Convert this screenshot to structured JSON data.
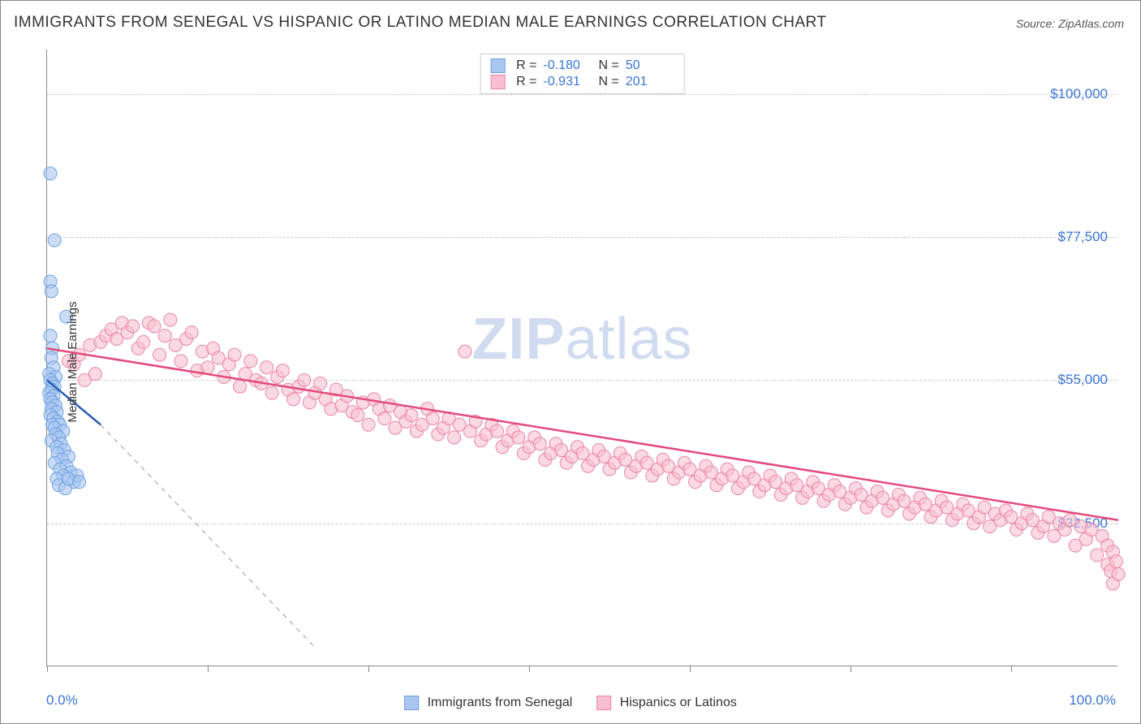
{
  "title": "IMMIGRANTS FROM SENEGAL VS HISPANIC OR LATINO MEDIAN MALE EARNINGS CORRELATION CHART",
  "source": "Source: ZipAtlas.com",
  "ylabel": "Median Male Earnings",
  "watermark_zip": "ZIP",
  "watermark_atlas": "atlas",
  "chart": {
    "type": "scatter",
    "xlim": [
      0,
      100
    ],
    "ylim": [
      10000,
      107000
    ],
    "yticks": [
      {
        "v": 32500,
        "label": "$32,500"
      },
      {
        "v": 55000,
        "label": "$55,000"
      },
      {
        "v": 77500,
        "label": "$77,500"
      },
      {
        "v": 100000,
        "label": "$100,000"
      }
    ],
    "xtick_positions": [
      0,
      15,
      30,
      45,
      60,
      75,
      90
    ],
    "xaxis_left_label": "0.0%",
    "xaxis_right_label": "100.0%",
    "background_color": "#ffffff",
    "grid_color": "#cccccc",
    "marker_radius": 8,
    "marker_stroke_width": 1
  },
  "series_blue": {
    "name": "Immigrants from Senegal",
    "color_fill": "#a8c6f0",
    "color_stroke": "#6fa0e0",
    "color_line": "#2a5db0",
    "R": "-0.180",
    "N": "50",
    "trend": {
      "x1": 0,
      "y1": 55000,
      "x2": 5,
      "y2": 48000,
      "x2_dashed": 25,
      "y2_dashed": 13000
    },
    "points": [
      [
        0.3,
        87500
      ],
      [
        0.7,
        77000
      ],
      [
        0.3,
        70500
      ],
      [
        0.4,
        69000
      ],
      [
        1.8,
        65000
      ],
      [
        0.3,
        62000
      ],
      [
        0.5,
        60000
      ],
      [
        0.4,
        58500
      ],
      [
        0.6,
        57000
      ],
      [
        0.2,
        56000
      ],
      [
        0.8,
        55500
      ],
      [
        0.3,
        55000
      ],
      [
        0.5,
        54500
      ],
      [
        0.7,
        54000
      ],
      [
        0.4,
        53500
      ],
      [
        0.2,
        53000
      ],
      [
        0.6,
        52500
      ],
      [
        0.3,
        52000
      ],
      [
        0.5,
        51500
      ],
      [
        0.8,
        51000
      ],
      [
        0.4,
        50500
      ],
      [
        0.9,
        50000
      ],
      [
        0.3,
        49500
      ],
      [
        0.6,
        49000
      ],
      [
        1.0,
        48500
      ],
      [
        0.5,
        48000
      ],
      [
        1.2,
        48000
      ],
      [
        0.7,
        47500
      ],
      [
        1.5,
        47000
      ],
      [
        0.8,
        46500
      ],
      [
        1.1,
        46000
      ],
      [
        0.4,
        45500
      ],
      [
        1.3,
        45000
      ],
      [
        0.9,
        44500
      ],
      [
        1.6,
        44000
      ],
      [
        1.0,
        43500
      ],
      [
        2.0,
        43000
      ],
      [
        1.4,
        42500
      ],
      [
        0.7,
        42000
      ],
      [
        1.8,
        41500
      ],
      [
        1.2,
        41000
      ],
      [
        2.2,
        40500
      ],
      [
        1.5,
        40000
      ],
      [
        0.9,
        39500
      ],
      [
        2.5,
        39000
      ],
      [
        1.1,
        38500
      ],
      [
        1.7,
        38000
      ],
      [
        2.8,
        40000
      ],
      [
        2.0,
        39500
      ],
      [
        3.0,
        39000
      ]
    ]
  },
  "series_pink": {
    "name": "Hispanics or Latinos",
    "color_fill": "#f8bfd0",
    "color_stroke": "#e885a8",
    "color_line": "#e34a7a",
    "R": "-0.931",
    "N": "201",
    "trend": {
      "x1": 0,
      "y1": 60000,
      "x2": 100,
      "y2": 33000
    },
    "points": [
      [
        2,
        58000
      ],
      [
        2.5,
        57500
      ],
      [
        3,
        59000
      ],
      [
        3.5,
        55000
      ],
      [
        4,
        60500
      ],
      [
        4.5,
        56000
      ],
      [
        5,
        61000
      ],
      [
        5.5,
        62000
      ],
      [
        6,
        63000
      ],
      [
        6.5,
        61500
      ],
      [
        7,
        64000
      ],
      [
        7.5,
        62500
      ],
      [
        8,
        63500
      ],
      [
        8.5,
        60000
      ],
      [
        9,
        61000
      ],
      [
        9.5,
        64000
      ],
      [
        10,
        63500
      ],
      [
        10.5,
        59000
      ],
      [
        11,
        62000
      ],
      [
        11.5,
        64500
      ],
      [
        12,
        60500
      ],
      [
        12.5,
        58000
      ],
      [
        13,
        61500
      ],
      [
        13.5,
        62500
      ],
      [
        14,
        56500
      ],
      [
        14.5,
        59500
      ],
      [
        15,
        57000
      ],
      [
        15.5,
        60000
      ],
      [
        16,
        58500
      ],
      [
        16.5,
        55500
      ],
      [
        17,
        57500
      ],
      [
        17.5,
        59000
      ],
      [
        18,
        54000
      ],
      [
        18.5,
        56000
      ],
      [
        19,
        58000
      ],
      [
        19.5,
        55000
      ],
      [
        20,
        54500
      ],
      [
        20.5,
        57000
      ],
      [
        21,
        53000
      ],
      [
        21.5,
        55500
      ],
      [
        22,
        56500
      ],
      [
        22.5,
        53500
      ],
      [
        23,
        52000
      ],
      [
        23.5,
        54000
      ],
      [
        24,
        55000
      ],
      [
        24.5,
        51500
      ],
      [
        25,
        53000
      ],
      [
        25.5,
        54500
      ],
      [
        26,
        52000
      ],
      [
        26.5,
        50500
      ],
      [
        27,
        53500
      ],
      [
        27.5,
        51000
      ],
      [
        28,
        52500
      ],
      [
        28.5,
        50000
      ],
      [
        29,
        49500
      ],
      [
        29.5,
        51500
      ],
      [
        30,
        48000
      ],
      [
        30.5,
        52000
      ],
      [
        31,
        50500
      ],
      [
        31.5,
        49000
      ],
      [
        32,
        51000
      ],
      [
        32.5,
        47500
      ],
      [
        33,
        50000
      ],
      [
        33.5,
        48500
      ],
      [
        34,
        49500
      ],
      [
        34.5,
        47000
      ],
      [
        35,
        48000
      ],
      [
        35.5,
        50500
      ],
      [
        36,
        49000
      ],
      [
        36.5,
        46500
      ],
      [
        37,
        47500
      ],
      [
        37.5,
        49000
      ],
      [
        38,
        46000
      ],
      [
        38.5,
        48000
      ],
      [
        39,
        59500
      ],
      [
        39.5,
        47000
      ],
      [
        40,
        48500
      ],
      [
        40.5,
        45500
      ],
      [
        41,
        46500
      ],
      [
        41.5,
        48000
      ],
      [
        42,
        47000
      ],
      [
        42.5,
        44500
      ],
      [
        43,
        45500
      ],
      [
        43.5,
        47000
      ],
      [
        44,
        46000
      ],
      [
        44.5,
        43500
      ],
      [
        45,
        44500
      ],
      [
        45.5,
        46000
      ],
      [
        46,
        45000
      ],
      [
        46.5,
        42500
      ],
      [
        47,
        43500
      ],
      [
        47.5,
        45000
      ],
      [
        48,
        44000
      ],
      [
        48.5,
        42000
      ],
      [
        49,
        43000
      ],
      [
        49.5,
        44500
      ],
      [
        50,
        43500
      ],
      [
        50.5,
        41500
      ],
      [
        51,
        42500
      ],
      [
        51.5,
        44000
      ],
      [
        52,
        43000
      ],
      [
        52.5,
        41000
      ],
      [
        53,
        42000
      ],
      [
        53.5,
        43500
      ],
      [
        54,
        42500
      ],
      [
        54.5,
        40500
      ],
      [
        55,
        41500
      ],
      [
        55.5,
        43000
      ],
      [
        56,
        42000
      ],
      [
        56.5,
        40000
      ],
      [
        57,
        41000
      ],
      [
        57.5,
        42500
      ],
      [
        58,
        41500
      ],
      [
        58.5,
        39500
      ],
      [
        59,
        40500
      ],
      [
        59.5,
        42000
      ],
      [
        60,
        41000
      ],
      [
        60.5,
        39000
      ],
      [
        61,
        40000
      ],
      [
        61.5,
        41500
      ],
      [
        62,
        40500
      ],
      [
        62.5,
        38500
      ],
      [
        63,
        39500
      ],
      [
        63.5,
        41000
      ],
      [
        64,
        40000
      ],
      [
        64.5,
        38000
      ],
      [
        65,
        39000
      ],
      [
        65.5,
        40500
      ],
      [
        66,
        39500
      ],
      [
        66.5,
        37500
      ],
      [
        67,
        38500
      ],
      [
        67.5,
        40000
      ],
      [
        68,
        39000
      ],
      [
        68.5,
        37000
      ],
      [
        69,
        38000
      ],
      [
        69.5,
        39500
      ],
      [
        70,
        38500
      ],
      [
        70.5,
        36500
      ],
      [
        71,
        37500
      ],
      [
        71.5,
        39000
      ],
      [
        72,
        38000
      ],
      [
        72.5,
        36000
      ],
      [
        73,
        37000
      ],
      [
        73.5,
        38500
      ],
      [
        74,
        37500
      ],
      [
        74.5,
        35500
      ],
      [
        75,
        36500
      ],
      [
        75.5,
        38000
      ],
      [
        76,
        37000
      ],
      [
        76.5,
        35000
      ],
      [
        77,
        36000
      ],
      [
        77.5,
        37500
      ],
      [
        78,
        36500
      ],
      [
        78.5,
        34500
      ],
      [
        79,
        35500
      ],
      [
        79.5,
        37000
      ],
      [
        80,
        36000
      ],
      [
        80.5,
        34000
      ],
      [
        81,
        35000
      ],
      [
        81.5,
        36500
      ],
      [
        82,
        35500
      ],
      [
        82.5,
        33500
      ],
      [
        83,
        34500
      ],
      [
        83.5,
        36000
      ],
      [
        84,
        35000
      ],
      [
        84.5,
        33000
      ],
      [
        85,
        34000
      ],
      [
        85.5,
        35500
      ],
      [
        86,
        34500
      ],
      [
        86.5,
        32500
      ],
      [
        87,
        33500
      ],
      [
        87.5,
        35000
      ],
      [
        88,
        32000
      ],
      [
        88.5,
        34000
      ],
      [
        89,
        33000
      ],
      [
        89.5,
        34500
      ],
      [
        90,
        33500
      ],
      [
        90.5,
        31500
      ],
      [
        91,
        32500
      ],
      [
        91.5,
        34000
      ],
      [
        92,
        33000
      ],
      [
        92.5,
        31000
      ],
      [
        93,
        32000
      ],
      [
        93.5,
        33500
      ],
      [
        94,
        30500
      ],
      [
        94.5,
        32500
      ],
      [
        95,
        31500
      ],
      [
        95.5,
        33000
      ],
      [
        96,
        29000
      ],
      [
        96.5,
        32000
      ],
      [
        97,
        30000
      ],
      [
        97.5,
        31500
      ],
      [
        98,
        27500
      ],
      [
        98.5,
        30500
      ],
      [
        99,
        26000
      ],
      [
        99,
        29000
      ],
      [
        99.3,
        25000
      ],
      [
        99.5,
        28000
      ],
      [
        99.5,
        23000
      ],
      [
        99.8,
        26500
      ],
      [
        100,
        24500
      ]
    ]
  },
  "stats_legend": {
    "r_label": "R =",
    "n_label": "N ="
  }
}
